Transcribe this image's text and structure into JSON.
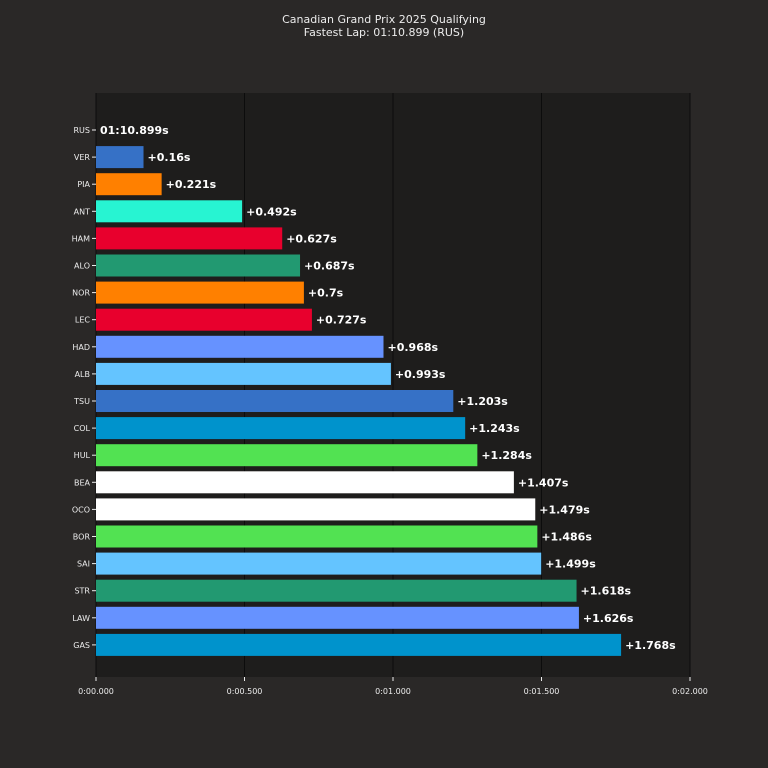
{
  "chart_data": {
    "type": "bar",
    "orientation": "horizontal",
    "title": "Canadian Grand Prix 2025 Qualifying",
    "subtitle": "Fastest Lap: 01:10.899 (RUS)",
    "xlim": [
      0,
      2.0
    ],
    "x_ticks": [
      {
        "value": 0.0,
        "label": "0:00.000"
      },
      {
        "value": 0.5,
        "label": "0:00.500"
      },
      {
        "value": 1.0,
        "label": "0:01.000"
      },
      {
        "value": 1.5,
        "label": "0:01.500"
      },
      {
        "value": 2.0,
        "label": "0:02.000"
      }
    ],
    "grid": "vertical",
    "bars": [
      {
        "driver": "RUS",
        "gap": 0.0,
        "label": "01:10.899s",
        "color": "#27f4d2"
      },
      {
        "driver": "VER",
        "gap": 0.16,
        "label": "+0.16s",
        "color": "#3671c6"
      },
      {
        "driver": "PIA",
        "gap": 0.221,
        "label": "+0.221s",
        "color": "#ff8000"
      },
      {
        "driver": "ANT",
        "gap": 0.492,
        "label": "+0.492s",
        "color": "#27f4d2"
      },
      {
        "driver": "HAM",
        "gap": 0.627,
        "label": "+0.627s",
        "color": "#e8002d"
      },
      {
        "driver": "ALO",
        "gap": 0.687,
        "label": "+0.687s",
        "color": "#229971"
      },
      {
        "driver": "NOR",
        "gap": 0.7,
        "label": "+0.7s",
        "color": "#ff8000"
      },
      {
        "driver": "LEC",
        "gap": 0.727,
        "label": "+0.727s",
        "color": "#e8002d"
      },
      {
        "driver": "HAD",
        "gap": 0.968,
        "label": "+0.968s",
        "color": "#6692ff"
      },
      {
        "driver": "ALB",
        "gap": 0.993,
        "label": "+0.993s",
        "color": "#64c4ff"
      },
      {
        "driver": "TSU",
        "gap": 1.203,
        "label": "+1.203s",
        "color": "#3671c6"
      },
      {
        "driver": "COL",
        "gap": 1.243,
        "label": "+1.243s",
        "color": "#0093cc"
      },
      {
        "driver": "HUL",
        "gap": 1.284,
        "label": "+1.284s",
        "color": "#52e252"
      },
      {
        "driver": "BEA",
        "gap": 1.407,
        "label": "+1.407s",
        "color": "#ffffff"
      },
      {
        "driver": "OCO",
        "gap": 1.479,
        "label": "+1.479s",
        "color": "#ffffff"
      },
      {
        "driver": "BOR",
        "gap": 1.486,
        "label": "+1.486s",
        "color": "#52e252"
      },
      {
        "driver": "SAI",
        "gap": 1.499,
        "label": "+1.499s",
        "color": "#64c4ff"
      },
      {
        "driver": "STR",
        "gap": 1.618,
        "label": "+1.618s",
        "color": "#229971"
      },
      {
        "driver": "LAW",
        "gap": 1.626,
        "label": "+1.626s",
        "color": "#6692ff"
      },
      {
        "driver": "GAS",
        "gap": 1.768,
        "label": "+1.768s",
        "color": "#0093cc"
      }
    ],
    "colors": {
      "figure_background": "#2a2827",
      "plot_background": "#1e1d1c",
      "grid": "#0c0c0c",
      "text": "#ececec"
    }
  }
}
